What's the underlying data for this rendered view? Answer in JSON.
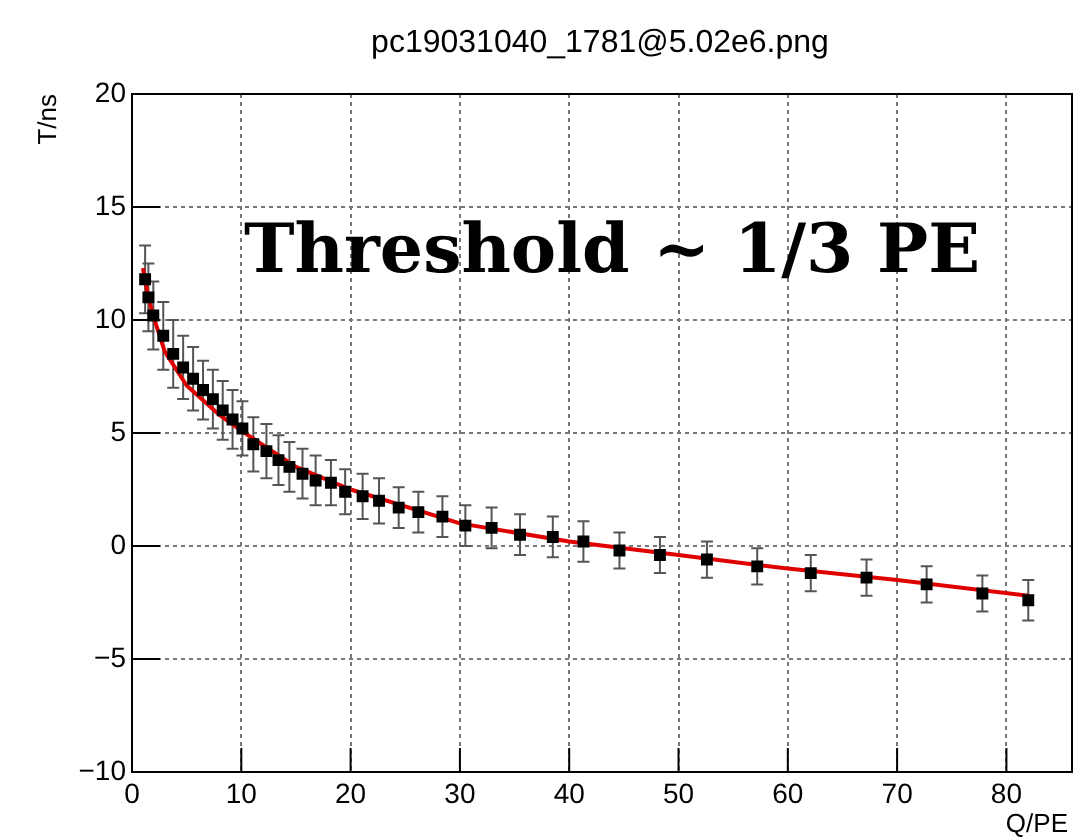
{
  "chart_data": {
    "type": "scatter",
    "title": "pc19031040_1781@5.02e6.png",
    "xlabel": "Q/PE",
    "ylabel": "T/ns",
    "annotations": [
      "Threshold ~ 1/3 PE"
    ],
    "xlim": [
      0,
      86
    ],
    "xticks": [
      0,
      10,
      20,
      30,
      40,
      50,
      60,
      70,
      80
    ],
    "ylim": [
      -10,
      20
    ],
    "yticks": [
      -10,
      -5,
      0,
      5,
      10,
      15,
      20
    ],
    "grid": true,
    "legend": false,
    "marker": "square",
    "series": [
      {
        "color": "#000000",
        "x": [
          1.2,
          1.5,
          1.95,
          2.86,
          3.77,
          4.68,
          5.59,
          6.5,
          7.4,
          8.3,
          9.2,
          10.1,
          11.1,
          12.3,
          13.4,
          14.4,
          15.6,
          16.8,
          18.2,
          19.5,
          21.1,
          22.6,
          24.4,
          26.2,
          28.4,
          30.5,
          32.9,
          35.5,
          38.5,
          41.3,
          44.6,
          48.3,
          52.6,
          57.2,
          62.1,
          67.2,
          72.7,
          77.8,
          82.0
        ],
        "values": [
          11.8,
          11.0,
          10.2,
          9.3,
          8.5,
          7.9,
          7.4,
          6.9,
          6.5,
          6.0,
          5.6,
          5.2,
          4.5,
          4.2,
          3.8,
          3.5,
          3.2,
          2.9,
          2.8,
          2.4,
          2.2,
          2.0,
          1.7,
          1.5,
          1.3,
          0.9,
          0.8,
          0.5,
          0.4,
          0.2,
          -0.2,
          -0.4,
          -0.6,
          -0.9,
          -1.2,
          -1.4,
          -1.7,
          -2.1,
          -2.4
        ],
        "errors": [
          1.5,
          1.5,
          1.5,
          1.5,
          1.5,
          1.4,
          1.4,
          1.3,
          1.3,
          1.3,
          1.3,
          1.2,
          1.2,
          1.2,
          1.1,
          1.1,
          1.1,
          1.1,
          1.0,
          1.0,
          1.0,
          1.0,
          0.9,
          0.9,
          0.9,
          0.9,
          0.9,
          0.9,
          0.9,
          0.9,
          0.8,
          0.8,
          0.8,
          0.8,
          0.8,
          0.8,
          0.8,
          0.8,
          0.9
        ]
      },
      {
        "type": "line",
        "color": "#e00000",
        "marker": "none",
        "line_style": "solid",
        "x": [
          1,
          1.5,
          2,
          3,
          5,
          8,
          10,
          15,
          20,
          30,
          40,
          50,
          60,
          70,
          82
        ],
        "values": [
          12.3,
          11.0,
          10.1,
          8.6,
          7.1,
          5.8,
          5.1,
          3.5,
          2.5,
          1.0,
          0.2,
          -0.4,
          -1.0,
          -1.5,
          -2.2
        ]
      }
    ]
  }
}
